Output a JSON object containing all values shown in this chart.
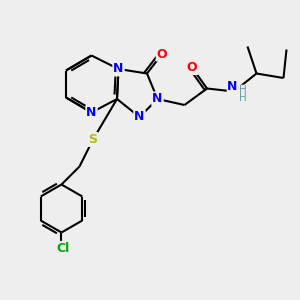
{
  "bg_color": "#eeeeee",
  "bond_color": "#000000",
  "atom_colors": {
    "O": "#ff0000",
    "N": "#0000ff",
    "S": "#bbbb00",
    "Cl": "#00aa00",
    "H": "#6699aa",
    "C": "#000000"
  }
}
